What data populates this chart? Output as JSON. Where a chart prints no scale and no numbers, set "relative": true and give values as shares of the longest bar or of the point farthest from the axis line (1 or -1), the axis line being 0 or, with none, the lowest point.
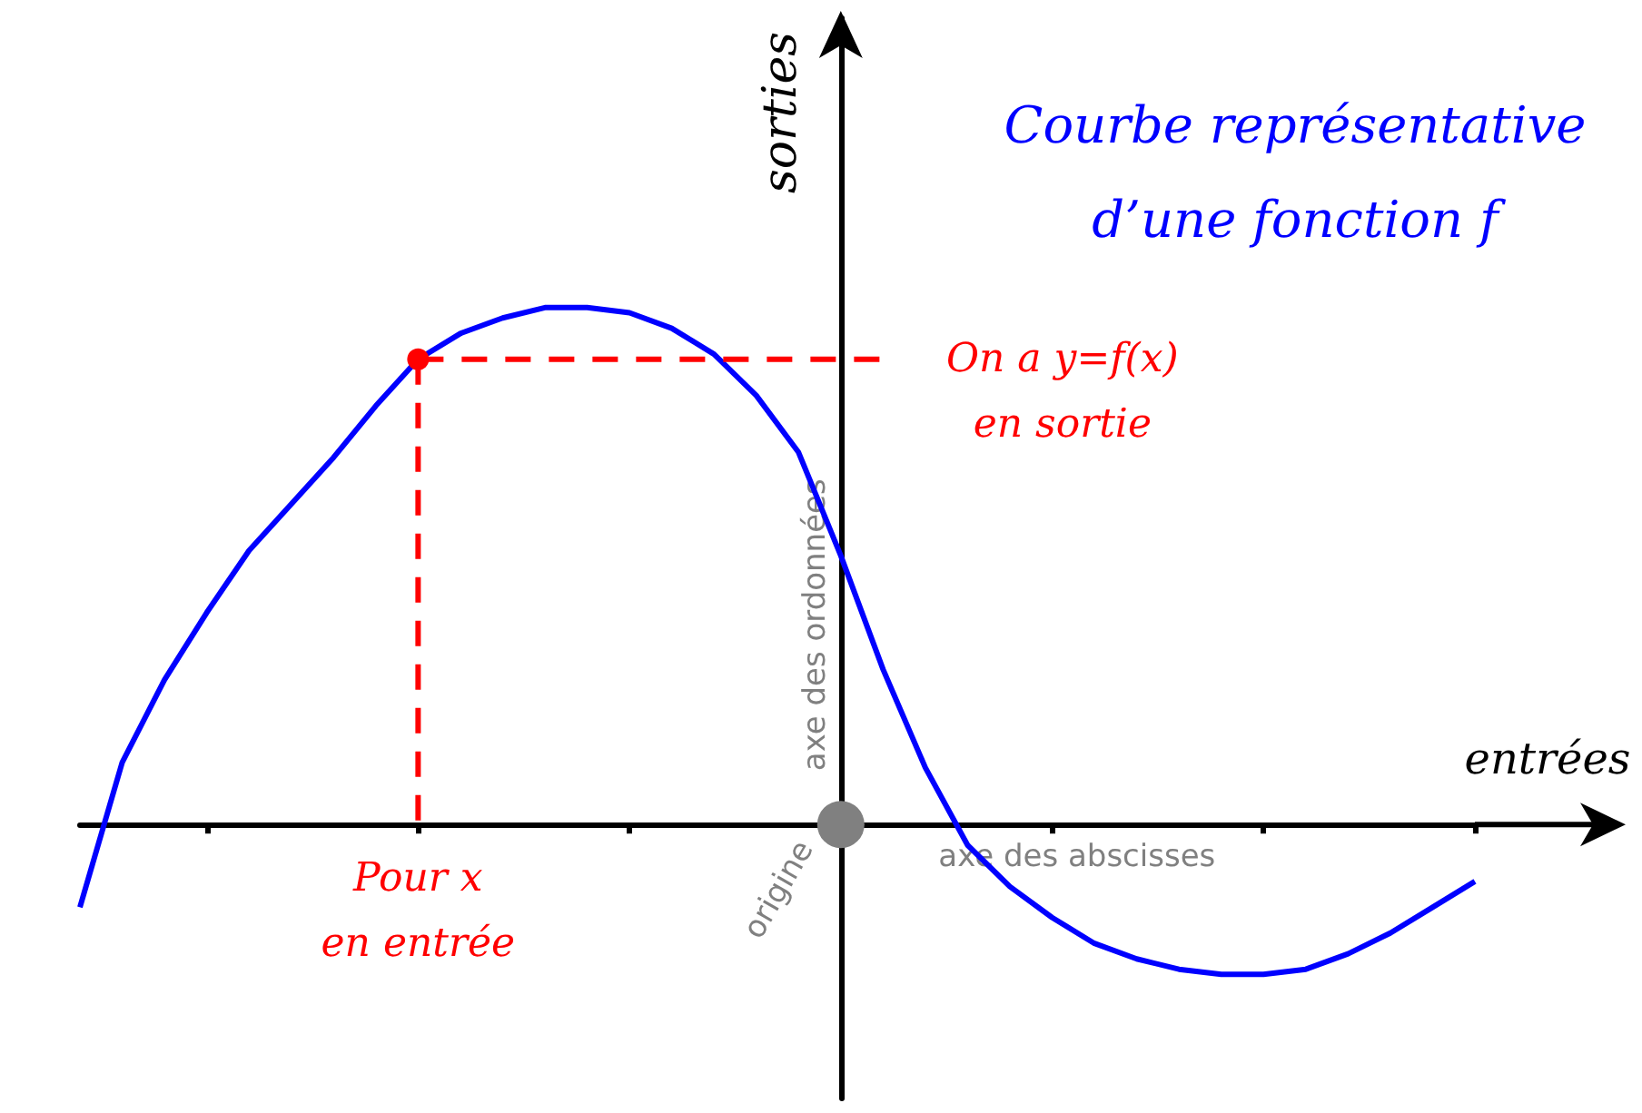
{
  "chart_data": {
    "type": "line",
    "relative": true,
    "title": "Courbe représentative\nd’une fonction f",
    "xlabel": "entrées",
    "ylabel": "sorties",
    "categories": [
      null,
      null,
      null,
      null,
      null,
      null,
      null,
      null,
      null,
      null,
      null,
      null,
      null,
      null,
      null,
      null,
      null,
      null,
      null,
      null,
      null,
      null,
      null,
      null,
      null,
      null,
      null,
      null,
      null,
      null,
      null,
      null,
      null,
      null
    ],
    "series": [
      {
        "color": "#0000ff",
        "values": [
          -0.16,
          0.12,
          0.28,
          0.41,
          0.53,
          0.62,
          0.71,
          0.81,
          0.9,
          0.95,
          0.98,
          1,
          1,
          0.99,
          0.96,
          0.91,
          0.83,
          0.72,
          0.52,
          0.3,
          0.11,
          -0.04,
          -0.12,
          -0.18,
          -0.23,
          -0.26,
          -0.28,
          -0.29,
          -0.29,
          -0.28,
          -0.25,
          -0.21,
          -0.16,
          -0.11
        ]
      }
    ],
    "marker": "none",
    "annotations": [
      "Pour x\nen entrée",
      "On a y=f(x)\nen sortie",
      "axe des ordonnées",
      "axe des abscisses",
      "origine"
    ]
  }
}
